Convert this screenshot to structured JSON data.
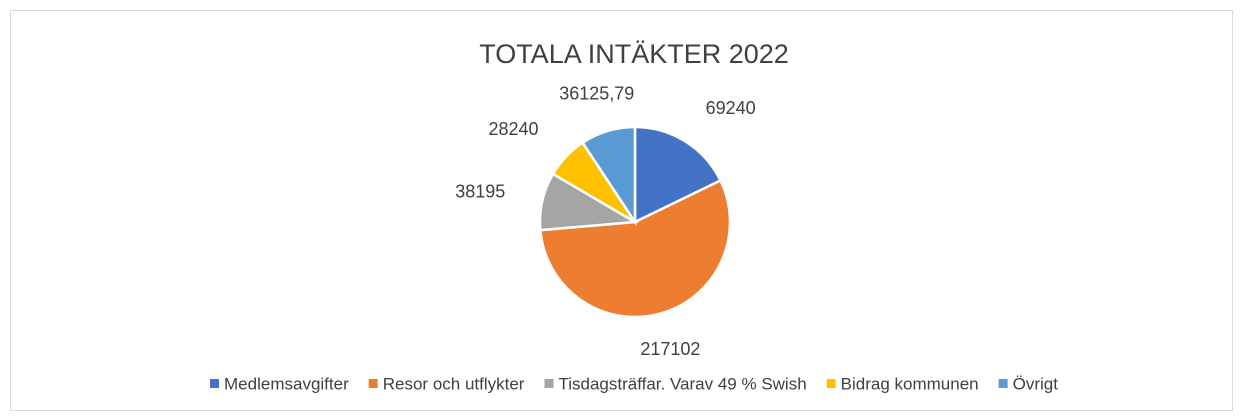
{
  "chart_data": {
    "type": "pie",
    "title": "TOTALA INTÄKTER 2022",
    "categories": [
      "Medlemsavgifter",
      "Resor och utflykter",
      "Tisdagsträffar. Varav 49 % Swish",
      "Bidrag kommunen",
      "Övrigt"
    ],
    "values": [
      69240,
      217102,
      38195,
      28240,
      36125.79
    ],
    "value_labels": [
      "69240",
      "217102",
      "38195",
      "28240",
      "36125,79"
    ],
    "colors": [
      "#4472c4",
      "#ed7d31",
      "#a5a5a5",
      "#ffc000",
      "#5b9bd5"
    ],
    "legend": "bottom"
  }
}
